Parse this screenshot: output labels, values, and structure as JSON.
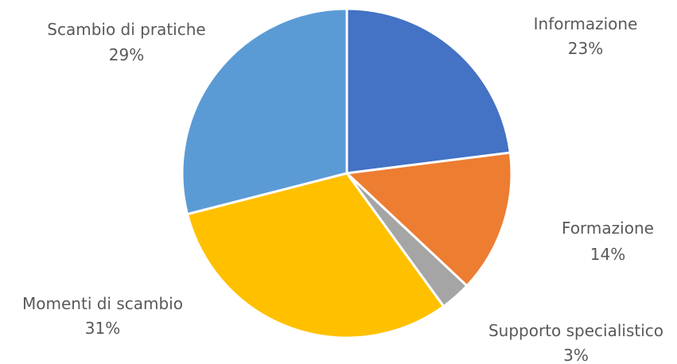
{
  "chart_data": {
    "type": "pie",
    "title": "",
    "slices": [
      {
        "label": "Informazione",
        "value": 23,
        "value_label": "23%",
        "color": "#4472C4"
      },
      {
        "label": "Formazione",
        "value": 14,
        "value_label": "14%",
        "color": "#ED7D31"
      },
      {
        "label": "Supporto specialistico",
        "value": 3,
        "value_label": "3%",
        "color": "#A5A5A5"
      },
      {
        "label": "Momenti di scambio",
        "value": 31,
        "value_label": "31%",
        "color": "#FFC000"
      },
      {
        "label": "Scambio di pratiche",
        "value": 29,
        "value_label": "29%",
        "color": "#5B9BD5"
      }
    ],
    "start_angle": "12 o'clock",
    "direction": "clockwise",
    "legend": "none",
    "data_labels": "outside, category name and percentage"
  }
}
